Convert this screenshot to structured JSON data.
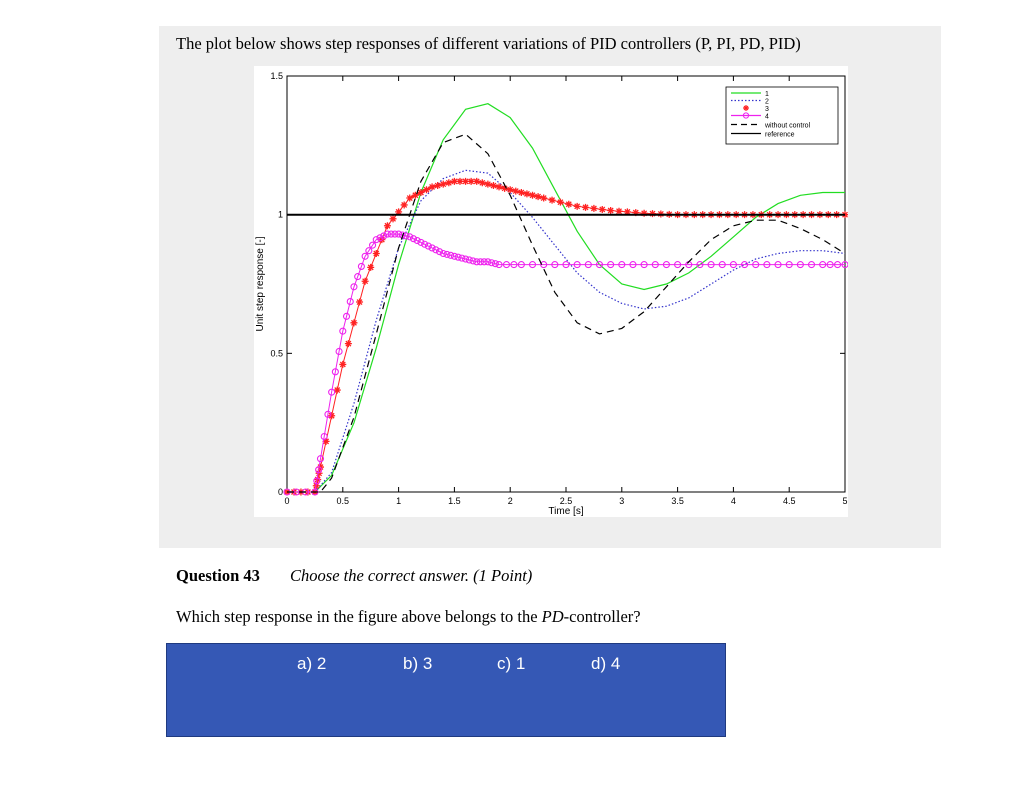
{
  "intro_text": "The plot below shows step responses of different variations of PID controllers (P, PI, PD, PID)",
  "question": {
    "number": "Question 43",
    "instruction": "Choose the correct answer. (1 Point)",
    "text_before": "Which step response in the figure above belongs to the ",
    "text_emph": "PD",
    "text_after": "-controller?"
  },
  "answers": [
    {
      "label": "a)  2"
    },
    {
      "label": "b) 3"
    },
    {
      "label": "c) 1"
    },
    {
      "label": "d) 4"
    }
  ],
  "colors": {
    "answer_bg": "#3558b5",
    "panel_bg": "#eeeeee"
  },
  "chart_data": {
    "type": "line",
    "title": "",
    "xlabel": "Time [s]",
    "ylabel": "Unit step response [-]",
    "xlim": [
      0,
      5
    ],
    "ylim": [
      0,
      1.5
    ],
    "xticks": [
      0,
      0.5,
      1,
      1.5,
      2,
      2.5,
      3,
      3.5,
      4,
      4.5,
      5
    ],
    "xtick_labels": [
      "0",
      "0.5",
      "1",
      "1.5",
      "2",
      "2.5",
      "3",
      "3.5",
      "4",
      "4.5",
      "5"
    ],
    "yticks": [
      0,
      0.5,
      1,
      1.5
    ],
    "ytick_labels": [
      "0",
      "0.5",
      "1",
      "1.5"
    ],
    "grid": false,
    "legend_position": "top-right",
    "series": [
      {
        "name": "1",
        "color": "#22dd22",
        "style": "solid",
        "x": [
          0,
          0.25,
          0.4,
          0.6,
          0.8,
          1.0,
          1.2,
          1.4,
          1.6,
          1.8,
          2.0,
          2.2,
          2.4,
          2.6,
          2.8,
          3.0,
          3.2,
          3.4,
          3.6,
          3.8,
          4.0,
          4.2,
          4.4,
          4.6,
          4.8,
          5.0
        ],
        "y": [
          0,
          0,
          0.06,
          0.25,
          0.52,
          0.82,
          1.08,
          1.27,
          1.38,
          1.4,
          1.35,
          1.24,
          1.09,
          0.94,
          0.82,
          0.75,
          0.73,
          0.75,
          0.79,
          0.85,
          0.92,
          0.99,
          1.04,
          1.07,
          1.08,
          1.08
        ]
      },
      {
        "name": "2",
        "color": "#3333cc",
        "style": "dotted",
        "x": [
          0,
          0.25,
          0.4,
          0.6,
          0.8,
          1.0,
          1.2,
          1.4,
          1.6,
          1.8,
          2.0,
          2.2,
          2.4,
          2.6,
          2.8,
          3.0,
          3.2,
          3.4,
          3.6,
          3.8,
          4.0,
          4.2,
          4.4,
          4.6,
          4.8,
          5.0
        ],
        "y": [
          0,
          0,
          0.07,
          0.32,
          0.62,
          0.88,
          1.05,
          1.13,
          1.16,
          1.15,
          1.08,
          0.99,
          0.89,
          0.79,
          0.72,
          0.68,
          0.66,
          0.67,
          0.7,
          0.75,
          0.8,
          0.84,
          0.86,
          0.87,
          0.87,
          0.86
        ]
      },
      {
        "name": "3",
        "color": "#ff2222",
        "style": "star",
        "x": [
          0,
          0.25,
          0.3,
          0.5,
          0.7,
          0.9,
          1.1,
          1.3,
          1.5,
          1.7,
          1.9,
          2.1,
          2.3,
          2.6,
          2.9,
          3.2,
          3.5,
          3.8,
          4.1,
          4.4,
          4.7,
          5.0
        ],
        "y": [
          0,
          0,
          0.09,
          0.46,
          0.76,
          0.96,
          1.06,
          1.1,
          1.12,
          1.12,
          1.1,
          1.08,
          1.06,
          1.03,
          1.015,
          1.005,
          1.0,
          1.0,
          1.0,
          1.0,
          1.0,
          1.0
        ]
      },
      {
        "name": "4",
        "color": "#ee22ee",
        "style": "circle",
        "x": [
          0,
          0.25,
          0.3,
          0.4,
          0.5,
          0.6,
          0.7,
          0.8,
          0.9,
          1.0,
          1.1,
          1.2,
          1.3,
          1.4,
          1.5,
          1.6,
          1.7,
          1.8,
          1.9,
          2.1,
          2.4,
          2.7,
          3.0,
          3.3,
          3.6,
          3.9,
          4.2,
          4.5,
          4.8,
          5.0
        ],
        "y": [
          0,
          0,
          0.12,
          0.36,
          0.58,
          0.74,
          0.85,
          0.91,
          0.93,
          0.93,
          0.92,
          0.9,
          0.88,
          0.86,
          0.85,
          0.84,
          0.83,
          0.83,
          0.82,
          0.82,
          0.82,
          0.82,
          0.82,
          0.82,
          0.82,
          0.82,
          0.82,
          0.82,
          0.82,
          0.82
        ]
      },
      {
        "name": "without control",
        "color": "#000000",
        "style": "dashed",
        "x": [
          0,
          0.3,
          0.4,
          0.6,
          0.8,
          1.0,
          1.2,
          1.4,
          1.6,
          1.8,
          2.0,
          2.2,
          2.4,
          2.6,
          2.8,
          3.0,
          3.2,
          3.4,
          3.6,
          3.8,
          4.0,
          4.2,
          4.4,
          4.6,
          4.8,
          5.0
        ],
        "y": [
          0,
          0,
          0.05,
          0.27,
          0.57,
          0.88,
          1.12,
          1.26,
          1.29,
          1.22,
          1.07,
          0.89,
          0.72,
          0.61,
          0.57,
          0.59,
          0.65,
          0.74,
          0.83,
          0.91,
          0.96,
          0.98,
          0.98,
          0.95,
          0.91,
          0.86
        ]
      },
      {
        "name": "reference",
        "color": "#000000",
        "style": "solid-thick",
        "x": [
          0,
          5
        ],
        "y": [
          1,
          1
        ]
      }
    ]
  }
}
